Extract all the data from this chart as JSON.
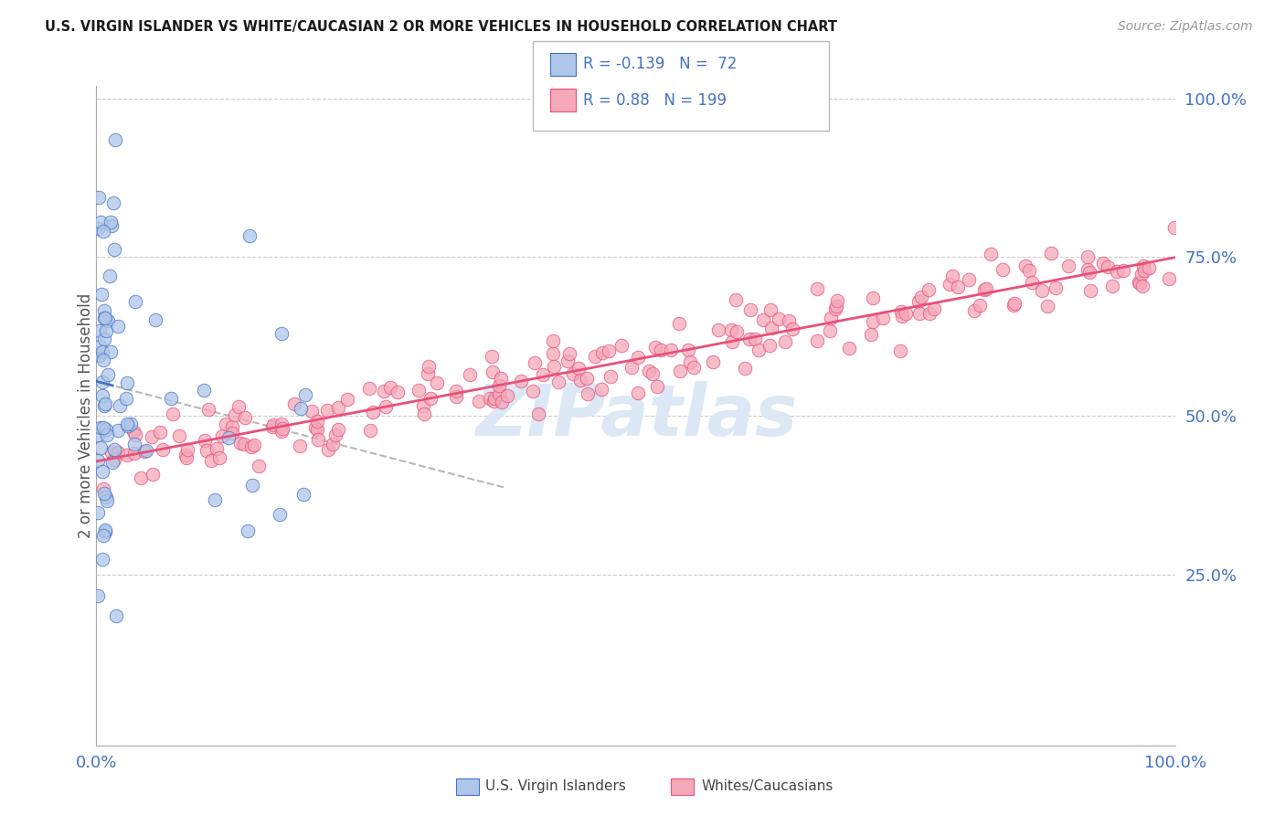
{
  "title": "U.S. VIRGIN ISLANDER VS WHITE/CAUCASIAN 2 OR MORE VEHICLES IN HOUSEHOLD CORRELATION CHART",
  "source": "Source: ZipAtlas.com",
  "ylabel": "2 or more Vehicles in Household",
  "legend_label1": "U.S. Virgin Islanders",
  "legend_label2": "Whites/Caucasians",
  "R1": -0.139,
  "N1": 72,
  "R2": 0.88,
  "N2": 199,
  "color_blue_fill": "#aec6e8",
  "color_pink_fill": "#f4a8b8",
  "color_blue_edge": "#4472c4",
  "color_pink_edge": "#e8507a",
  "color_blue_line": "#4472c4",
  "color_pink_line": "#e8507a",
  "color_blue_text": "#4472c4",
  "color_gray_dash": "#b0b0b0",
  "background_color": "#ffffff",
  "grid_color": "#cccccc",
  "watermark_color": "#dce8f5"
}
